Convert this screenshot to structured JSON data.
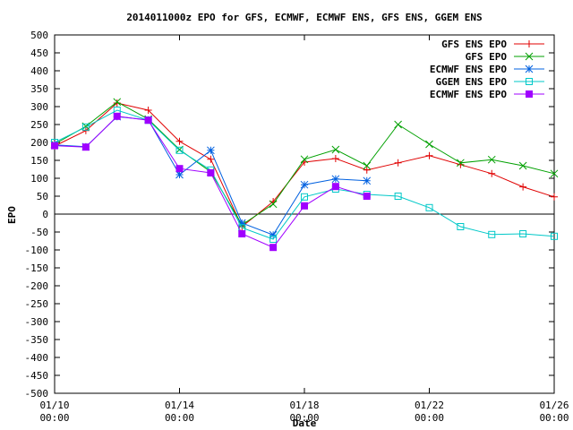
{
  "chart_data": {
    "type": "line",
    "title": "2014011000z EPO for GFS, ECMWF, ECMWF ENS, GFS ENS, GGEM ENS",
    "xlabel": "Date",
    "ylabel": "EPO",
    "ylim": [
      -500,
      500
    ],
    "y_ticks": [
      500,
      450,
      400,
      350,
      300,
      250,
      200,
      150,
      100,
      50,
      0,
      -50,
      -100,
      -150,
      -200,
      -250,
      -300,
      -350,
      -400,
      -450,
      -500
    ],
    "x_range": [
      "2014-01-10 00:00",
      "2014-01-26 00:00"
    ],
    "x_ticks": [
      {
        "date": "2014-01-10",
        "label_line1": "01/10",
        "label_line2": "00:00"
      },
      {
        "date": "2014-01-14",
        "label_line1": "01/14",
        "label_line2": "00:00"
      },
      {
        "date": "2014-01-18",
        "label_line1": "01/18",
        "label_line2": "00:00"
      },
      {
        "date": "2014-01-22",
        "label_line1": "01/22",
        "label_line2": "00:00"
      },
      {
        "date": "2014-01-26",
        "label_line1": "01/26",
        "label_line2": "00:00"
      }
    ],
    "zero_line": true,
    "grid": false,
    "legend_position": "top-right",
    "series": [
      {
        "name": "GFS ENS EPO",
        "color": "#e00000",
        "marker": "plus",
        "x": [
          "2014-01-10",
          "2014-01-11",
          "2014-01-12",
          "2014-01-13",
          "2014-01-14",
          "2014-01-15",
          "2014-01-16",
          "2014-01-17",
          "2014-01-18",
          "2014-01-19",
          "2014-01-20",
          "2014-01-21",
          "2014-01-22",
          "2014-01-23",
          "2014-01-24",
          "2014-01-25",
          "2014-01-26"
        ],
        "y": [
          190,
          233,
          310,
          290,
          203,
          153,
          -35,
          35,
          145,
          155,
          123,
          143,
          163,
          138,
          113,
          76,
          48
        ]
      },
      {
        "name": "GFS EPO",
        "color": "#00a000",
        "marker": "cross",
        "x": [
          "2014-01-10",
          "2014-01-11",
          "2014-01-12",
          "2014-01-13",
          "2014-01-14",
          "2014-01-15",
          "2014-01-16",
          "2014-01-17",
          "2014-01-18",
          "2014-01-19",
          "2014-01-20",
          "2014-01-21",
          "2014-01-22",
          "2014-01-23",
          "2014-01-24",
          "2014-01-25",
          "2014-01-26"
        ],
        "y": [
          195,
          245,
          313,
          265,
          180,
          118,
          -30,
          28,
          153,
          180,
          135,
          250,
          195,
          143,
          152,
          135,
          113
        ]
      },
      {
        "name": "ECMWF ENS EPO",
        "color": "#0060e0",
        "marker": "star",
        "x": [
          "2014-01-10",
          "2014-01-11",
          "2014-01-12",
          "2014-01-13",
          "2014-01-14",
          "2014-01-15",
          "2014-01-16",
          "2014-01-17",
          "2014-01-18",
          "2014-01-19",
          "2014-01-20"
        ],
        "y": [
          193,
          188,
          272,
          263,
          110,
          178,
          -25,
          -58,
          82,
          98,
          93
        ]
      },
      {
        "name": "GGEM ENS EPO",
        "color": "#00c8c8",
        "marker": "square-open",
        "x": [
          "2014-01-10",
          "2014-01-11",
          "2014-01-12",
          "2014-01-13",
          "2014-01-14",
          "2014-01-15",
          "2014-01-16",
          "2014-01-17",
          "2014-01-18",
          "2014-01-19",
          "2014-01-20",
          "2014-01-21",
          "2014-01-22",
          "2014-01-23",
          "2014-01-24",
          "2014-01-25",
          "2014-01-26"
        ],
        "y": [
          200,
          243,
          290,
          262,
          178,
          123,
          -38,
          -70,
          48,
          70,
          55,
          50,
          18,
          -35,
          -57,
          -55,
          -62
        ]
      },
      {
        "name": "ECMWF ENS EPO",
        "color": "#a000ff",
        "marker": "square-filled",
        "x": [
          "2014-01-10",
          "2014-01-11",
          "2014-01-12",
          "2014-01-13",
          "2014-01-14",
          "2014-01-15",
          "2014-01-16",
          "2014-01-17",
          "2014-01-18",
          "2014-01-19",
          "2014-01-20"
        ],
        "y": [
          191,
          187,
          273,
          262,
          127,
          115,
          -55,
          -93,
          23,
          77,
          50
        ]
      }
    ]
  }
}
